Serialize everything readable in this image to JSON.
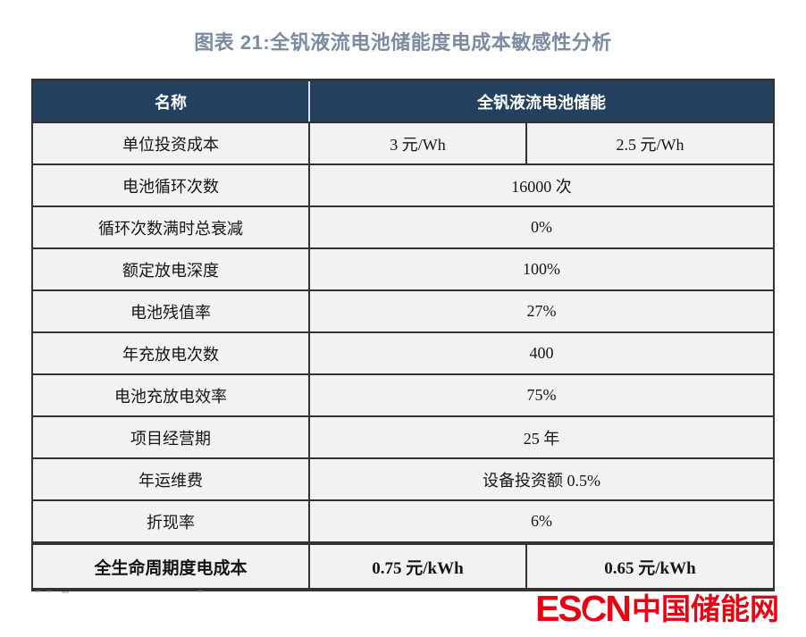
{
  "title": "图表 21:全钒液流电池储能度电成本敏感性分析",
  "table": {
    "header": {
      "name_label": "名称",
      "value_label": "全钒液流电池储能"
    },
    "rows": [
      {
        "name": "单位投资成本",
        "values": [
          "3 元/Wh",
          "2.5 元/Wh"
        ]
      },
      {
        "name": "电池循环次数",
        "values": [
          "16000 次"
        ]
      },
      {
        "name": "循环次数满时总衰减",
        "values": [
          "0%"
        ]
      },
      {
        "name": "额定放电深度",
        "values": [
          "100%"
        ]
      },
      {
        "name": "电池残值率",
        "values": [
          "27%"
        ]
      },
      {
        "name": "年充放电次数",
        "values": [
          "400"
        ]
      },
      {
        "name": "电池充放电效率",
        "values": [
          "75%"
        ]
      },
      {
        "name": "项目经营期",
        "values": [
          "25 年"
        ]
      },
      {
        "name": "年运维费",
        "values": [
          "设备投资额 0.5%"
        ]
      },
      {
        "name": "折现率",
        "values": [
          "6%"
        ]
      },
      {
        "name": "全生命周期度电成本",
        "values": [
          "0.75 元/kWh",
          "0.65 元/kWh"
        ],
        "bold": true
      }
    ]
  },
  "logo": {
    "en_left": "ES",
    "en_c": "C",
    "en_right": "N",
    "emblem": "仓",
    "cn": "中国储能网",
    "color": "#e60012"
  },
  "colors": {
    "header_bg": "#23405f",
    "header_text": "#ffffff",
    "cell_bg": "#f2f2f2",
    "border": "#333333",
    "title_text": "#7c8ba1",
    "logo_red": "#e60012"
  }
}
